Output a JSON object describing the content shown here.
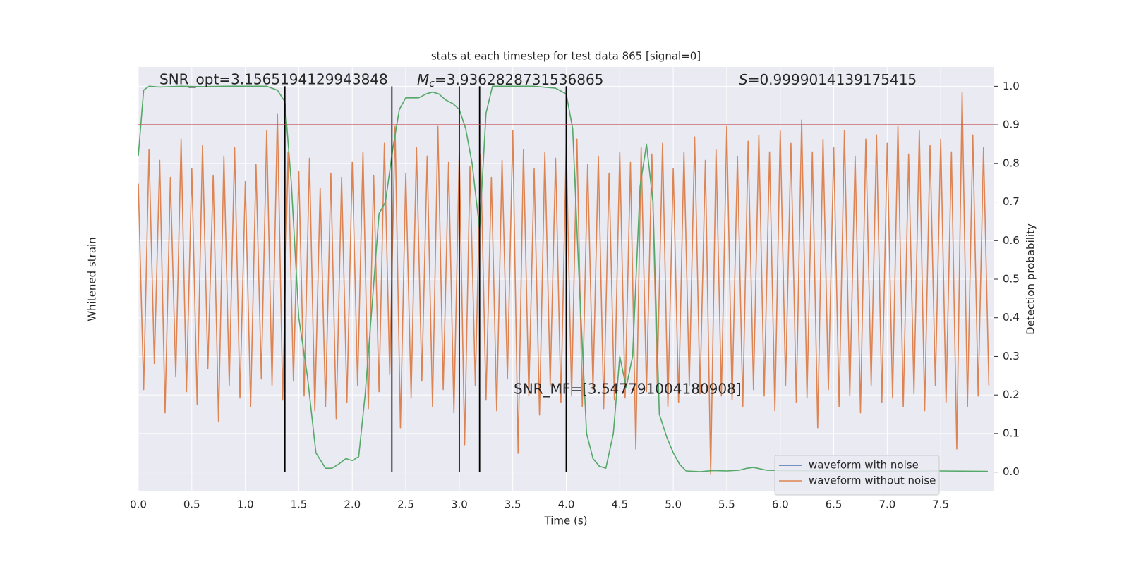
{
  "chart_data": {
    "type": "line",
    "title": "stats at each timestep for test data 865 [signal=0]",
    "xlabel": "Time (s)",
    "ylabel": "Whitened strain",
    "y2label": "Detection probability",
    "xlim": [
      0,
      8
    ],
    "ylim": [
      -1,
      1
    ],
    "y2lim": [
      -0.05,
      1.05
    ],
    "xticks": [
      {
        "value": 0,
        "label": "0.0"
      },
      0.5,
      {
        "value": 1,
        "label": "1.0"
      },
      1.5,
      {
        "value": 2,
        "label": "2.0"
      },
      2.5,
      {
        "value": 3,
        "label": "3.0"
      },
      3.5,
      {
        "value": 4,
        "label": "4.0"
      },
      4.5,
      {
        "value": 5,
        "label": "5.0"
      },
      5.5,
      {
        "value": 6,
        "label": "6.0"
      },
      6.5,
      {
        "value": 7,
        "label": "7.0"
      },
      7.5
    ],
    "y2ticks": [
      {
        "value": 0,
        "label": "0.0"
      },
      0.1,
      0.2,
      0.3,
      0.4,
      0.5,
      0.6,
      0.7,
      0.8,
      0.9,
      {
        "value": 1,
        "label": "1.0"
      }
    ],
    "grid": true,
    "legend_position": "lower right",
    "series": [
      {
        "name": "waveform with noise",
        "color": "#4c72b0"
      },
      {
        "name": "waveform without noise",
        "color": "#dd8452",
        "x": [
          0,
          0.05,
          0.1,
          0.15,
          0.2,
          0.25,
          0.3,
          0.35,
          0.4,
          0.45,
          0.5,
          0.55,
          0.6,
          0.65,
          0.7,
          0.75,
          0.8,
          0.85,
          0.9,
          0.95,
          1.0,
          1.05,
          1.1,
          1.15,
          1.2,
          1.25,
          1.3,
          1.35,
          1.4,
          1.45,
          1.5,
          1.55,
          1.6,
          1.65,
          1.7,
          1.75,
          1.8,
          1.85,
          1.9,
          1.95,
          2.0,
          2.05,
          2.1,
          2.15,
          2.2,
          2.25,
          2.3,
          2.35,
          2.4,
          2.45,
          2.5,
          2.55,
          2.6,
          2.65,
          2.7,
          2.75,
          2.8,
          2.85,
          2.9,
          2.95,
          3.0,
          3.05,
          3.1,
          3.15,
          3.2,
          3.25,
          3.3,
          3.35,
          3.4,
          3.45,
          3.5,
          3.55,
          3.6,
          3.65,
          3.7,
          3.75,
          3.8,
          3.85,
          3.9,
          3.95,
          4.0,
          4.05,
          4.1,
          4.15,
          4.2,
          4.25,
          4.3,
          4.35,
          4.4,
          4.45,
          4.5,
          4.55,
          4.6,
          4.65,
          4.7,
          4.75,
          4.8,
          4.85,
          4.9,
          4.95,
          5.0,
          5.05,
          5.1,
          5.15,
          5.2,
          5.25,
          5.3,
          5.35,
          5.4,
          5.45,
          5.5,
          5.55,
          5.6,
          5.65,
          5.7,
          5.75,
          5.8,
          5.85,
          5.9,
          5.95,
          6.0,
          6.05,
          6.1,
          6.15,
          6.2,
          6.25,
          6.3,
          6.35,
          6.4,
          6.45,
          6.5,
          6.55,
          6.6,
          6.65,
          6.7,
          6.75,
          6.8,
          6.85,
          6.9,
          6.95,
          7.0,
          7.05,
          7.1,
          7.15,
          7.2,
          7.25,
          7.3,
          7.35,
          7.4,
          7.45,
          7.5,
          7.55,
          7.6,
          7.65,
          7.7,
          7.75,
          7.8,
          7.85,
          7.9,
          7.95
        ],
        "values": [
          0.45,
          -0.52,
          0.61,
          -0.4,
          0.56,
          -0.63,
          0.48,
          -0.46,
          0.66,
          -0.53,
          0.52,
          -0.59,
          0.63,
          -0.42,
          0.49,
          -0.67,
          0.58,
          -0.5,
          0.62,
          -0.56,
          0.46,
          -0.6,
          0.54,
          -0.47,
          0.7,
          -0.5,
          0.78,
          -0.57,
          0.6,
          -0.48,
          0.51,
          -0.55,
          0.57,
          -0.62,
          0.43,
          -0.6,
          0.5,
          -0.66,
          0.48,
          -0.58,
          0.55,
          -0.5,
          0.6,
          -0.61,
          0.49,
          -0.53,
          0.64,
          -0.45,
          0.72,
          -0.7,
          0.5,
          -0.56,
          0.62,
          -0.48,
          0.58,
          -0.6,
          0.72,
          -0.52,
          0.55,
          -0.63,
          0.6,
          -0.78,
          0.53,
          -0.5,
          0.59,
          -0.57,
          0.48,
          -0.62,
          0.56,
          -0.47,
          0.7,
          -0.82,
          0.61,
          -0.55,
          0.52,
          -0.64,
          0.6,
          -0.5,
          0.57,
          -0.58,
          0.63,
          -0.55,
          0.66,
          -0.6,
          0.54,
          -0.52,
          0.58,
          -0.61,
          0.5,
          -0.57,
          0.6,
          -0.56,
          0.55,
          -0.8,
          0.62,
          -0.53,
          0.59,
          -0.49,
          0.64,
          -0.6,
          0.52,
          -0.58,
          0.6,
          -0.5,
          0.67,
          -0.54,
          0.56,
          -0.92,
          0.61,
          -0.55,
          0.72,
          -0.57,
          0.58,
          -0.6,
          0.65,
          -0.52,
          0.68,
          -0.55,
          0.6,
          -0.62,
          0.7,
          -0.5,
          0.64,
          -0.58,
          0.75,
          -0.56,
          0.6,
          -0.7,
          0.66,
          -0.52,
          0.62,
          -0.6,
          0.7,
          -0.55,
          0.58,
          -0.63,
          0.66,
          -0.5,
          0.68,
          -0.58,
          0.64,
          -0.56,
          0.72,
          -0.6,
          0.59,
          -0.54,
          0.7,
          -0.62,
          0.63,
          -0.5,
          0.66,
          -0.58,
          0.6,
          -0.8,
          0.88,
          -0.6,
          0.68,
          -0.55,
          0.62,
          -0.5
        ]
      },
      {
        "color": "#55a868",
        "axis": "y2",
        "x": [
          0,
          0.05,
          0.1,
          0.2,
          0.4,
          0.6,
          0.8,
          1.0,
          1.2,
          1.3,
          1.37,
          1.43,
          1.5,
          1.58,
          1.66,
          1.75,
          1.81,
          1.87,
          1.94,
          2.0,
          2.06,
          2.12,
          2.19,
          2.25,
          2.31,
          2.38,
          2.44,
          2.5,
          2.62,
          2.69,
          2.75,
          2.81,
          2.87,
          2.94,
          3.0,
          3.06,
          3.12,
          3.19,
          3.25,
          3.31,
          3.5,
          3.7,
          3.9,
          4.0,
          4.06,
          4.12,
          4.19,
          4.25,
          4.31,
          4.37,
          4.44,
          4.5,
          4.56,
          4.62,
          4.69,
          4.75,
          4.81,
          4.87,
          4.94,
          5.0,
          5.06,
          5.12,
          5.25,
          5.37,
          5.5,
          5.62,
          5.69,
          5.75,
          5.87,
          6.0,
          6.5,
          7.0,
          7.5,
          7.94
        ],
        "values": [
          0.82,
          0.99,
          1.0,
          0.998,
          1.0,
          0.999,
          1.0,
          1.0,
          1.0,
          0.99,
          0.96,
          0.75,
          0.4,
          0.25,
          0.05,
          0.01,
          0.01,
          0.02,
          0.035,
          0.03,
          0.04,
          0.2,
          0.45,
          0.67,
          0.7,
          0.84,
          0.94,
          0.97,
          0.97,
          0.98,
          0.985,
          0.98,
          0.965,
          0.955,
          0.94,
          0.89,
          0.8,
          0.63,
          0.93,
          1.0,
          1.0,
          1.0,
          0.995,
          0.98,
          0.89,
          0.5,
          0.1,
          0.035,
          0.015,
          0.01,
          0.1,
          0.3,
          0.22,
          0.3,
          0.74,
          0.85,
          0.7,
          0.15,
          0.09,
          0.05,
          0.02,
          0.003,
          0.001,
          0.004,
          0.003,
          0.005,
          0.01,
          0.012,
          0.005,
          0.004,
          0.003,
          0.002,
          0.003,
          0.002
        ]
      }
    ],
    "threshold": {
      "value": 0.9,
      "color": "#c44e52"
    },
    "vlines": {
      "x": [
        1.37,
        2.37,
        3.0,
        3.19,
        4.0
      ],
      "range": [
        0,
        1
      ],
      "color": "#000000"
    },
    "annotations": [
      {
        "text": "SNR_opt=3.1565194129943848"
      },
      {
        "symbol": "M",
        "sub": "c",
        "text": "=3.9362828731536865"
      },
      {
        "symbol": "S",
        "text": "=0.9999014139175415"
      },
      {
        "text": "SNR_MF=[3.547791004180908]"
      }
    ]
  }
}
